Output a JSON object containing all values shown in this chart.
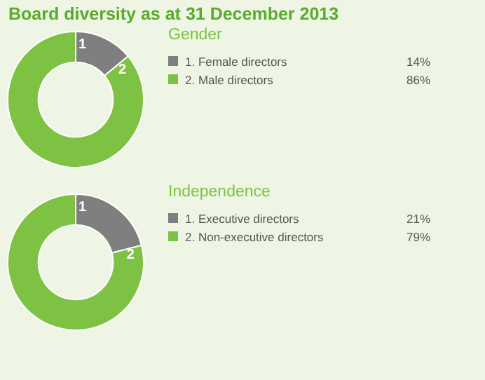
{
  "chart_data": [
    {
      "type": "donut",
      "title": "Board diversity as at 31 December 2013",
      "subtitle": "Gender",
      "categories": [
        "1. Female directors",
        "2. Male directors"
      ],
      "values": [
        14,
        86
      ],
      "value_labels": [
        "14%",
        "86%"
      ],
      "colors": [
        "#7f7f7f",
        "#7dc242"
      ],
      "legend": "right",
      "annotations": [
        {
          "text": "1",
          "x": "1. Female directors"
        },
        {
          "text": "2",
          "x": "2. Male directors"
        }
      ]
    },
    {
      "type": "donut",
      "subtitle": "Independence",
      "categories": [
        "1. Executive directors",
        "2. Non-executive directors"
      ],
      "values": [
        21,
        79
      ],
      "value_labels": [
        "21%",
        "79%"
      ],
      "colors": [
        "#7f7f7f",
        "#7dc242"
      ],
      "legend": "right",
      "annotations": [
        {
          "text": "1",
          "x": "1. Executive directors"
        },
        {
          "text": "2",
          "x": "2. Non-executive directors"
        }
      ]
    }
  ]
}
